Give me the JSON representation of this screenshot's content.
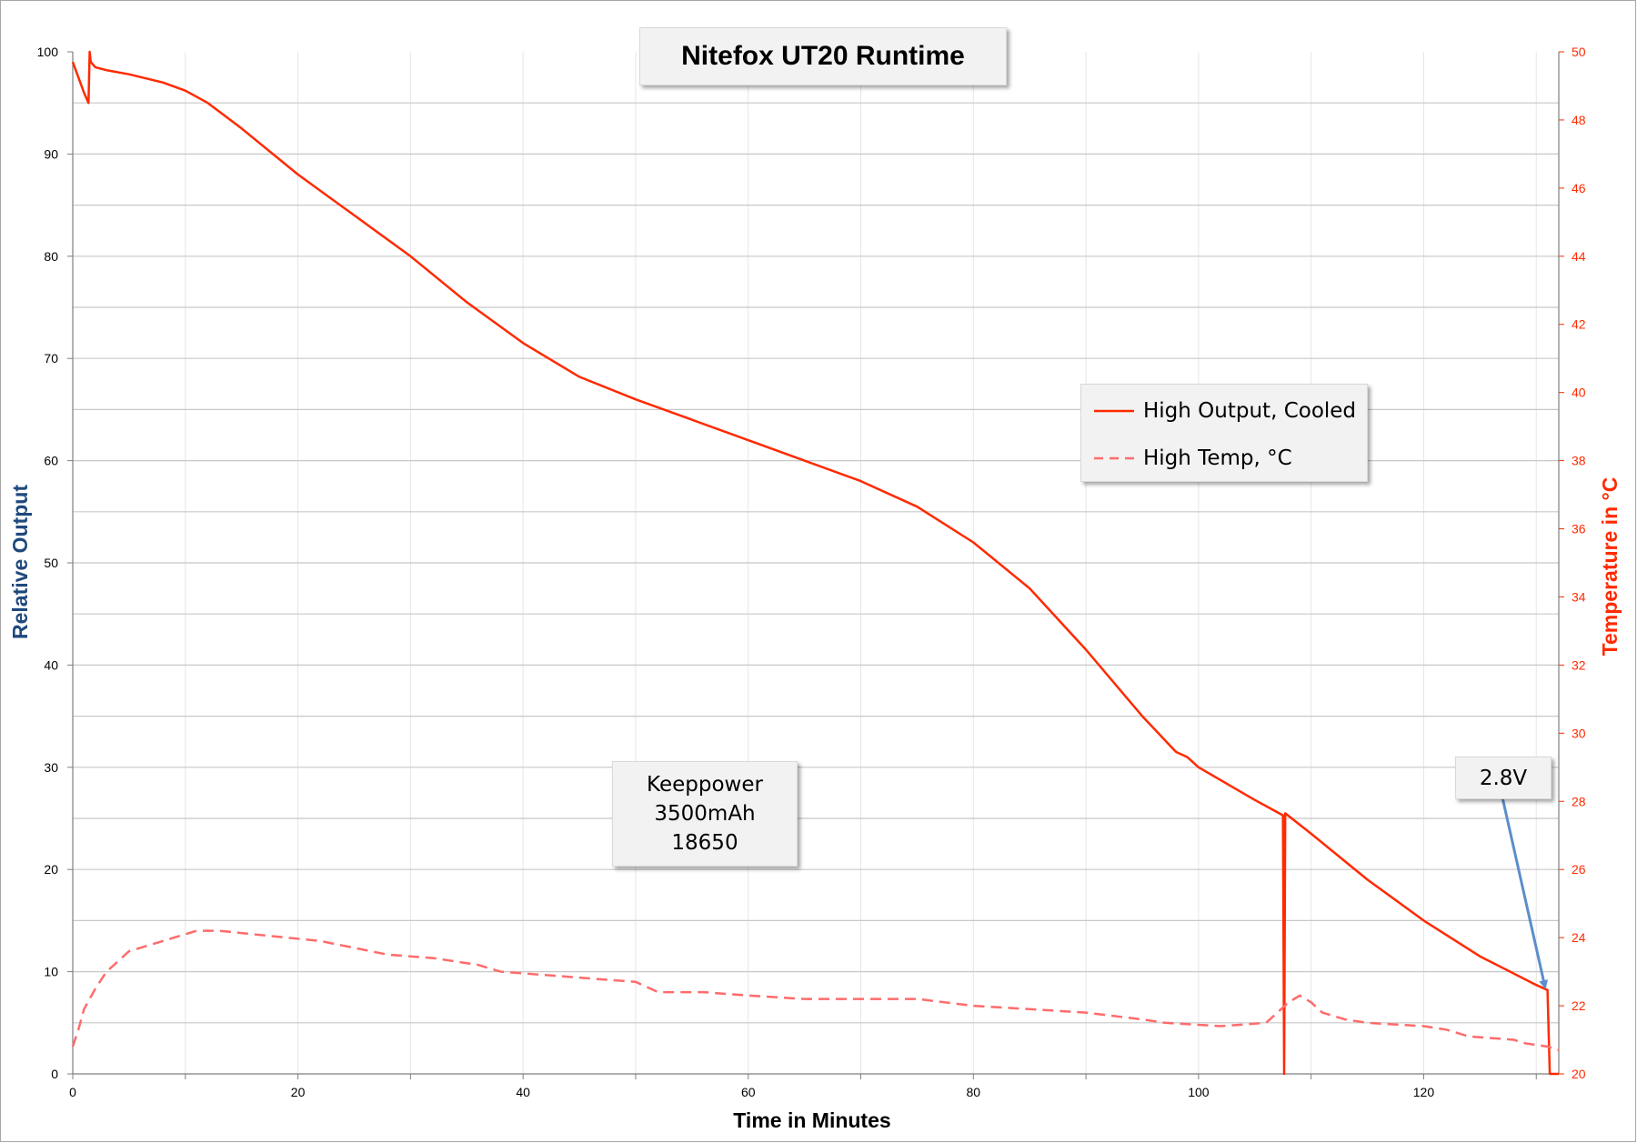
{
  "chart_data": {
    "type": "line",
    "title": "Nitefox UT20 Runtime",
    "xlabel": "Time in Minutes",
    "ylabel_left": "Relative Output",
    "ylabel_right": "Temperature in °C",
    "xlim": [
      0,
      132
    ],
    "ylim_left": [
      0,
      100
    ],
    "ylim_right": [
      20,
      50
    ],
    "x_ticks": [
      "0",
      "20",
      "40",
      "60",
      "80",
      "100",
      "120"
    ],
    "y_left_ticks": [
      "0",
      "10",
      "20",
      "30",
      "40",
      "50",
      "60",
      "70",
      "80",
      "90",
      "100"
    ],
    "y_right_ticks": [
      "20",
      "22",
      "24",
      "26",
      "28",
      "30",
      "32",
      "34",
      "36",
      "38",
      "40",
      "42",
      "44",
      "46",
      "48",
      "50"
    ],
    "grid": true,
    "legend_position": "center-right",
    "series": [
      {
        "name": "High Output, Cooled",
        "axis": "left",
        "color": "#ff2a00",
        "style": "solid",
        "points": [
          [
            0,
            99
          ],
          [
            0.5,
            97.5
          ],
          [
            1,
            96
          ],
          [
            1.4,
            95
          ],
          [
            1.5,
            100
          ],
          [
            1.6,
            99
          ],
          [
            2,
            98.5
          ],
          [
            3,
            98.2
          ],
          [
            5,
            97.8
          ],
          [
            8,
            97
          ],
          [
            10,
            96.2
          ],
          [
            12,
            95
          ],
          [
            15,
            92.5
          ],
          [
            20,
            88
          ],
          [
            25,
            84
          ],
          [
            30,
            80
          ],
          [
            35,
            75.5
          ],
          [
            40,
            71.5
          ],
          [
            45,
            68.2
          ],
          [
            50,
            66
          ],
          [
            55,
            64
          ],
          [
            60,
            62
          ],
          [
            65,
            60
          ],
          [
            70,
            58
          ],
          [
            75,
            55.5
          ],
          [
            80,
            52
          ],
          [
            85,
            47.5
          ],
          [
            90,
            41.5
          ],
          [
            95,
            35
          ],
          [
            98,
            31.5
          ],
          [
            99,
            31
          ],
          [
            100,
            30
          ],
          [
            105,
            26.8
          ],
          [
            107.5,
            25.3
          ],
          [
            107.6,
            0
          ],
          [
            107.7,
            25.5
          ],
          [
            110,
            23.5
          ],
          [
            115,
            19
          ],
          [
            120,
            15
          ],
          [
            125,
            11.5
          ],
          [
            130,
            8.7
          ],
          [
            131,
            8.2
          ],
          [
            131.2,
            0
          ],
          [
            132,
            0
          ]
        ]
      },
      {
        "name": "High Temp, °C",
        "axis": "right",
        "color": "#ff6b6b",
        "style": "dashed",
        "points": [
          [
            0,
            20.8
          ],
          [
            0.5,
            21.3
          ],
          [
            1,
            21.9
          ],
          [
            2,
            22.5
          ],
          [
            3,
            23.0
          ],
          [
            4,
            23.3
          ],
          [
            5,
            23.6
          ],
          [
            7,
            23.8
          ],
          [
            9,
            24.0
          ],
          [
            11,
            24.2
          ],
          [
            13,
            24.2
          ],
          [
            16,
            24.1
          ],
          [
            19,
            24.0
          ],
          [
            22,
            23.9
          ],
          [
            25,
            23.7
          ],
          [
            28,
            23.5
          ],
          [
            32,
            23.4
          ],
          [
            36,
            23.2
          ],
          [
            38,
            23.0
          ],
          [
            42,
            22.9
          ],
          [
            46,
            22.8
          ],
          [
            50,
            22.7
          ],
          [
            52,
            22.4
          ],
          [
            56,
            22.4
          ],
          [
            60,
            22.3
          ],
          [
            65,
            22.2
          ],
          [
            70,
            22.2
          ],
          [
            75,
            22.2
          ],
          [
            80,
            22.0
          ],
          [
            85,
            21.9
          ],
          [
            90,
            21.8
          ],
          [
            95,
            21.6
          ],
          [
            97,
            21.5
          ],
          [
            102,
            21.4
          ],
          [
            106,
            21.5
          ],
          [
            107,
            21.8
          ],
          [
            108,
            22.1
          ],
          [
            109,
            22.3
          ],
          [
            110,
            22.1
          ],
          [
            111,
            21.8
          ],
          [
            113,
            21.6
          ],
          [
            115,
            21.5
          ],
          [
            120,
            21.4
          ],
          [
            122,
            21.3
          ],
          [
            124,
            21.1
          ],
          [
            128,
            21.0
          ],
          [
            129,
            20.9
          ],
          [
            131,
            20.8
          ],
          [
            132,
            20.7
          ]
        ]
      }
    ],
    "annotations": {
      "battery_lines": [
        "Keeppower",
        "3500mAh",
        "18650"
      ],
      "cutoff_label": "2.8V",
      "arrow_color": "#5b8ecb"
    }
  }
}
